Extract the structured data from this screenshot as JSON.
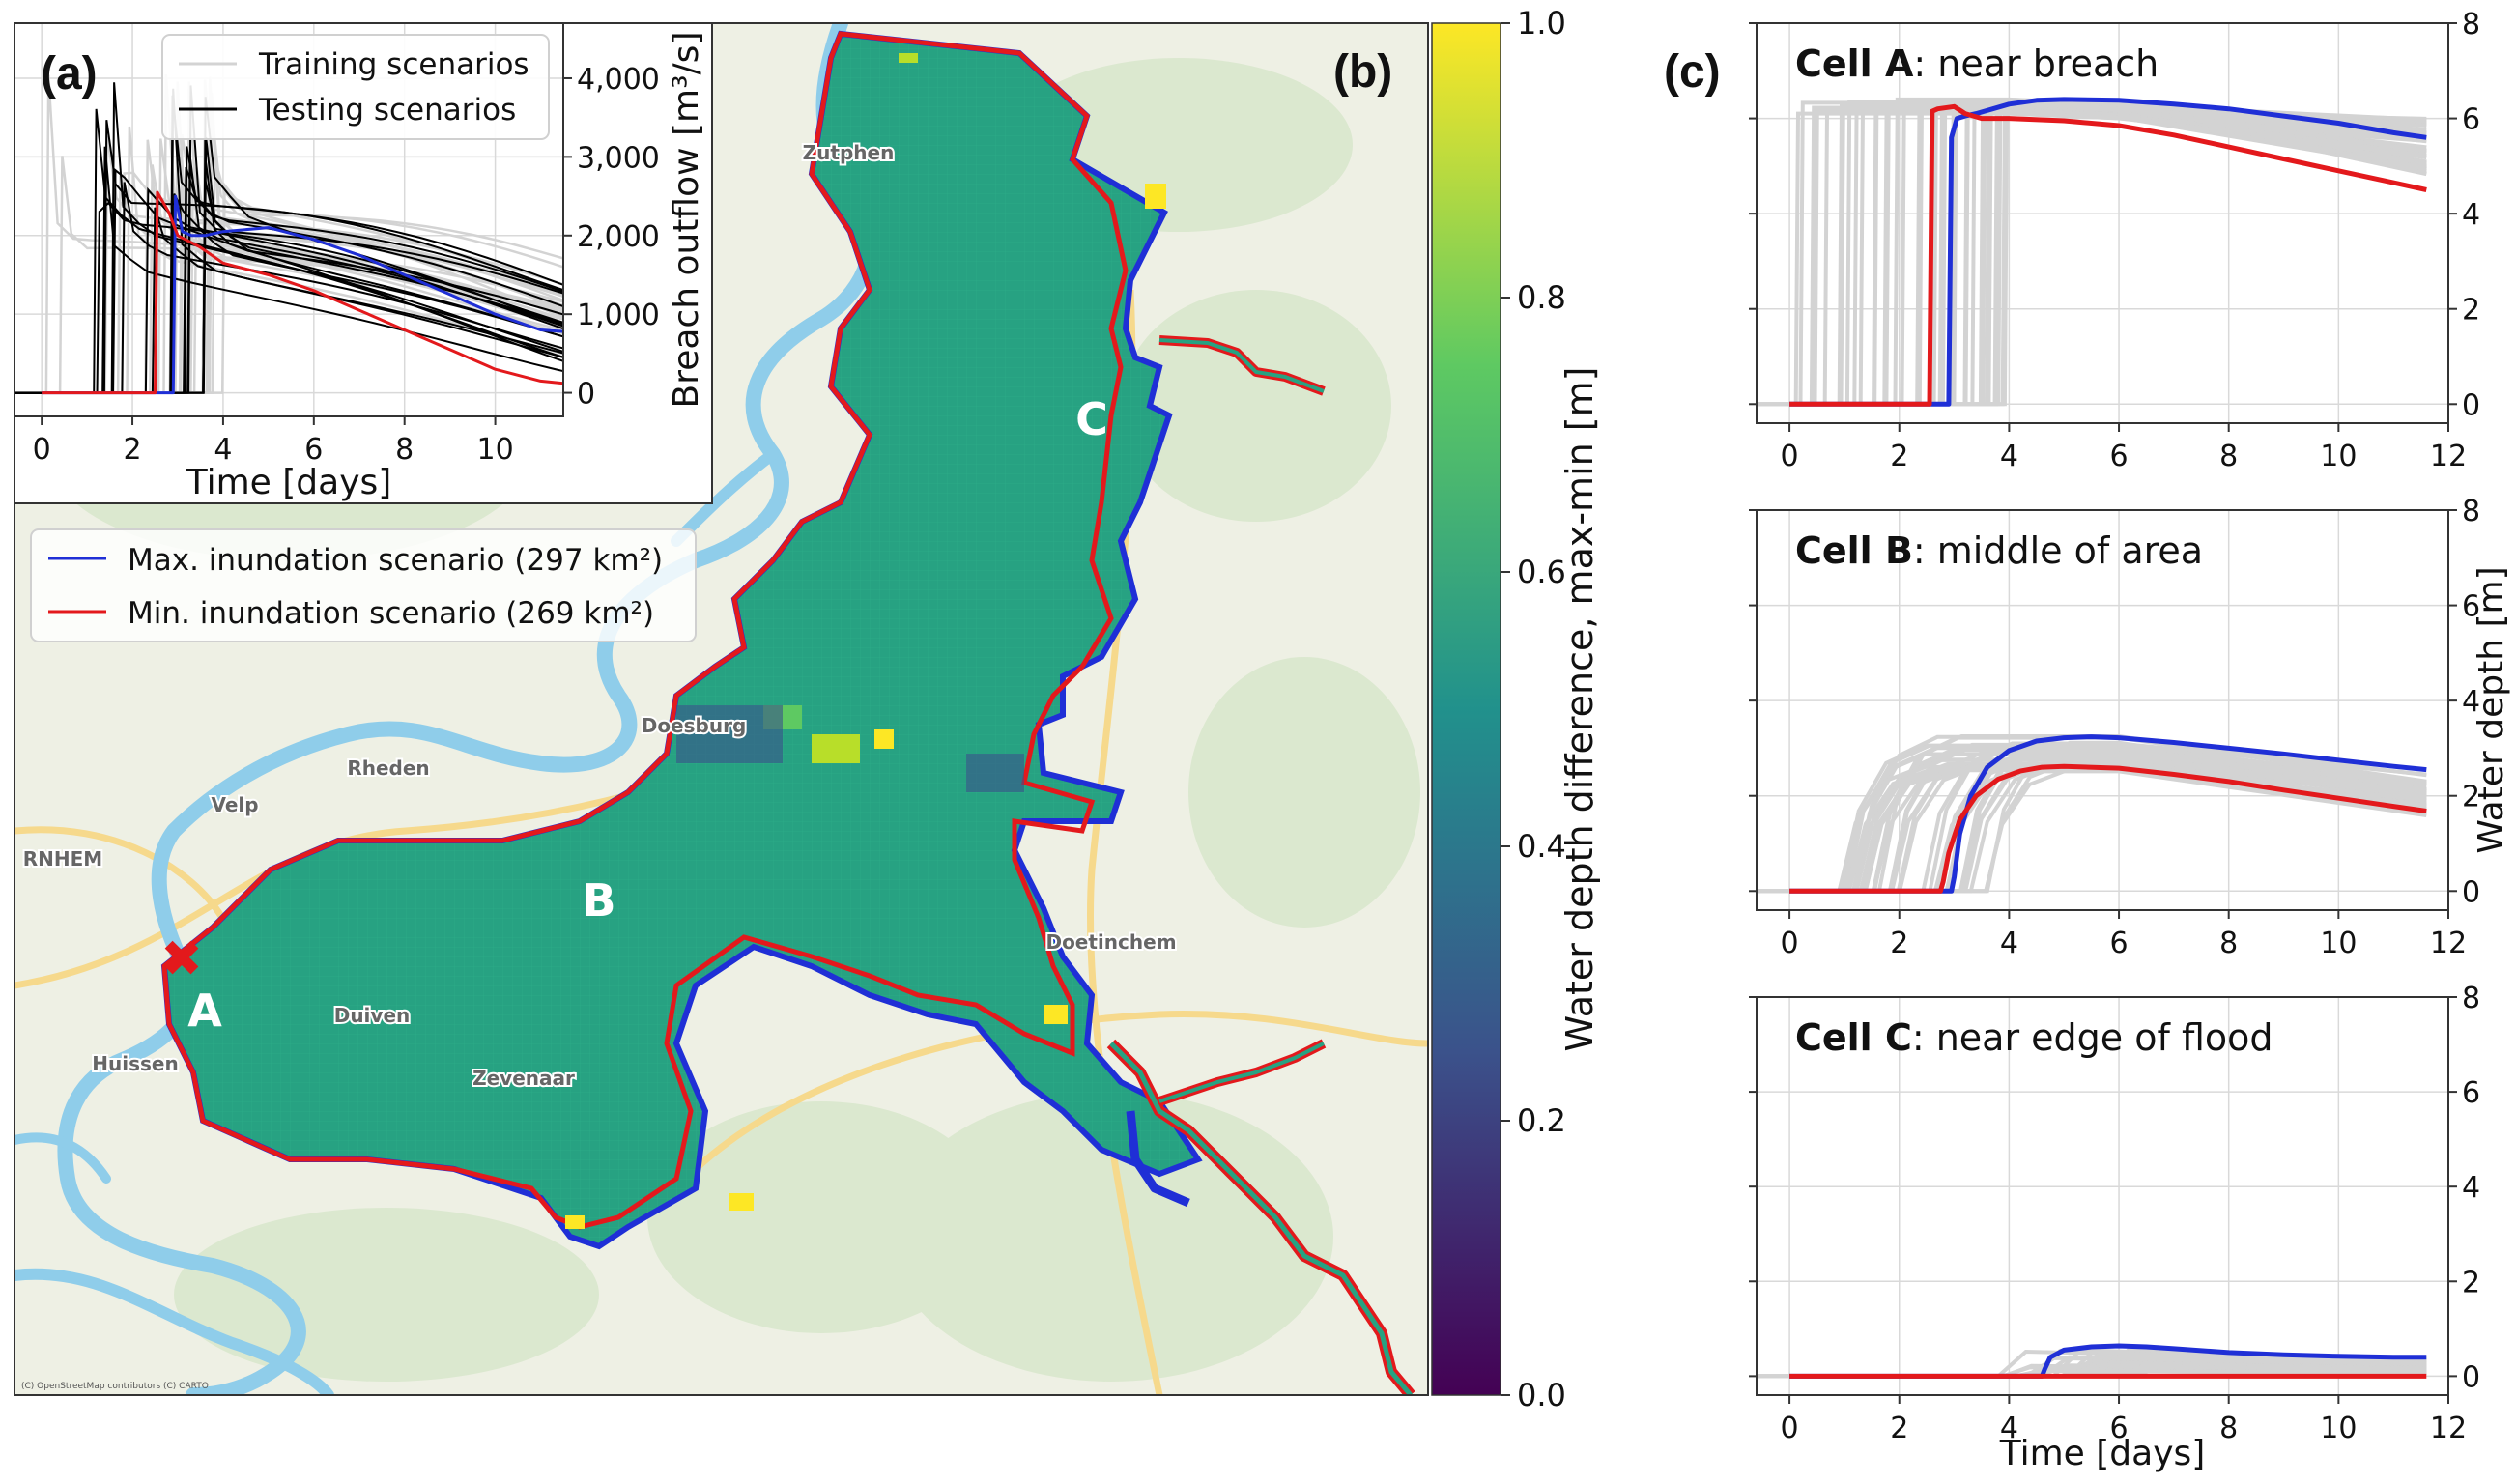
{
  "figure": {
    "panel_a_label": "(a)",
    "panel_b_label": "(b)",
    "panel_c_label": "(c)",
    "map_attribution": "(C) OpenStreetMap contributors (C) CARTO"
  },
  "map": {
    "legend": {
      "max_label": "Max. inundation scenario (297 km²)",
      "min_label": "Min. inundation scenario (269 km²)",
      "max_color": "#1f2fd6",
      "min_color": "#e3191c"
    },
    "places": [
      "Zutphen",
      "Doesburg",
      "Rheden",
      "Velp",
      "RNHEM",
      "Duiven",
      "Huissen",
      "Zevenaar",
      "Doetinchem"
    ],
    "cells": [
      "A",
      "B",
      "C"
    ],
    "breach_marker": "✖",
    "colorbar": {
      "label": "Water depth difference, max-min [m]",
      "ticks": [
        "0.0",
        "0.2",
        "0.4",
        "0.6",
        "0.8",
        "1.0"
      ],
      "colors": [
        "#440154",
        "#3b528b",
        "#21918c",
        "#5ec962",
        "#fde725"
      ]
    }
  },
  "chart_data": [
    {
      "id": "a",
      "type": "line",
      "title": "",
      "xlabel": "Time [days]",
      "ylabel": "Breach outflow [m³/s]",
      "xlim": [
        -0.6,
        11.5
      ],
      "ylim": [
        -300,
        4700
      ],
      "xticks": [
        0,
        2,
        4,
        6,
        8,
        10
      ],
      "yticks": [
        0,
        1000,
        2000,
        3000,
        4000
      ],
      "ytick_labels": [
        "0",
        "1,000",
        "2,000",
        "3,000",
        "4,000"
      ],
      "legend": [
        {
          "name": "Training scenarios",
          "color": "#d3d3d3"
        },
        {
          "name": "Testing scenarios",
          "color": "#000000"
        }
      ],
      "series": [
        {
          "name": "Max. inundation scenario",
          "color": "#1f2fd6",
          "x": [
            0,
            2.9,
            2.95,
            3.0,
            3.1,
            3.3,
            3.6,
            4,
            5,
            6,
            7,
            8,
            9,
            10,
            11,
            11.5
          ],
          "y": [
            0,
            0,
            2500,
            2350,
            2050,
            2000,
            2000,
            2050,
            2100,
            1950,
            1750,
            1500,
            1250,
            1000,
            800,
            780
          ]
        },
        {
          "name": "Min. inundation scenario",
          "color": "#e3191c",
          "x": [
            0,
            2.5,
            2.55,
            2.6,
            2.8,
            3.0,
            3.5,
            4,
            5,
            6,
            7,
            8,
            9,
            10,
            11,
            11.5
          ],
          "y": [
            0,
            0,
            2550,
            2500,
            2300,
            2000,
            1850,
            1650,
            1500,
            1300,
            1050,
            800,
            550,
            300,
            150,
            120
          ]
        }
      ]
    },
    {
      "id": "cellA",
      "type": "line",
      "title_bold": "Cell A",
      "title_rest": ": near breach",
      "xlabel": "",
      "ylabel": "",
      "xlim": [
        -0.6,
        12
      ],
      "ylim": [
        -0.4,
        8
      ],
      "xticks": [
        0,
        2,
        4,
        6,
        8,
        10,
        12
      ],
      "yticks": [
        0,
        2,
        4,
        6,
        8
      ],
      "series": [
        {
          "name": "Max. inundation scenario",
          "color": "#1f2fd6",
          "x": [
            0,
            2.9,
            2.95,
            3.05,
            3.2,
            3.4,
            4,
            4.5,
            5,
            6,
            7,
            8,
            9,
            10,
            11,
            11.6
          ],
          "y": [
            0,
            0,
            5.6,
            6.0,
            6.05,
            6.1,
            6.3,
            6.38,
            6.4,
            6.38,
            6.3,
            6.2,
            6.05,
            5.9,
            5.7,
            5.6
          ]
        },
        {
          "name": "Min. inundation scenario",
          "color": "#e3191c",
          "x": [
            0,
            2.55,
            2.6,
            2.7,
            3.0,
            3.2,
            3.5,
            4,
            5,
            6,
            7,
            8,
            9,
            10,
            11,
            11.6
          ],
          "y": [
            0,
            0,
            6.15,
            6.2,
            6.25,
            6.1,
            6.0,
            6.0,
            5.95,
            5.85,
            5.65,
            5.4,
            5.15,
            4.9,
            4.65,
            4.5
          ]
        }
      ]
    },
    {
      "id": "cellB",
      "type": "line",
      "title_bold": "Cell B",
      "title_rest": ": middle of area",
      "xlabel": "",
      "ylabel": "Water depth [m]",
      "xlim": [
        -0.6,
        12
      ],
      "ylim": [
        -0.4,
        8
      ],
      "xticks": [
        0,
        2,
        4,
        6,
        8,
        10,
        12
      ],
      "yticks": [
        0,
        2,
        4,
        6,
        8
      ],
      "series": [
        {
          "name": "Max. inundation scenario",
          "color": "#1f2fd6",
          "x": [
            0,
            2.95,
            3.0,
            3.1,
            3.3,
            3.6,
            4,
            4.5,
            5,
            5.5,
            6,
            7,
            8,
            9,
            10,
            11,
            11.6
          ],
          "y": [
            0,
            0,
            0.3,
            1.2,
            2.0,
            2.6,
            2.95,
            3.15,
            3.22,
            3.24,
            3.22,
            3.12,
            3.0,
            2.88,
            2.75,
            2.62,
            2.55
          ]
        },
        {
          "name": "Min. inundation scenario",
          "color": "#e3191c",
          "x": [
            0,
            2.75,
            2.8,
            2.9,
            3.1,
            3.4,
            3.8,
            4.2,
            4.6,
            5,
            6,
            7,
            8,
            9,
            10,
            11,
            11.6
          ],
          "y": [
            0,
            0,
            0.2,
            0.8,
            1.5,
            2.0,
            2.35,
            2.52,
            2.6,
            2.62,
            2.58,
            2.45,
            2.3,
            2.12,
            1.95,
            1.78,
            1.68
          ]
        }
      ]
    },
    {
      "id": "cellC",
      "type": "line",
      "title_bold": "Cell C",
      "title_rest": ": near edge of flood",
      "xlabel": "Time [days]",
      "ylabel": "",
      "xlim": [
        -0.6,
        12
      ],
      "ylim": [
        -0.4,
        8
      ],
      "xticks": [
        0,
        2,
        4,
        6,
        8,
        10,
        12
      ],
      "yticks": [
        0,
        2,
        4,
        6,
        8
      ],
      "series": [
        {
          "name": "Max. inundation scenario",
          "color": "#1f2fd6",
          "x": [
            0,
            4.6,
            4.65,
            4.75,
            5.0,
            5.5,
            6,
            6.5,
            7,
            8,
            9,
            10,
            11,
            11.6
          ],
          "y": [
            0,
            0,
            0.15,
            0.4,
            0.55,
            0.62,
            0.64,
            0.62,
            0.58,
            0.5,
            0.45,
            0.42,
            0.4,
            0.4
          ]
        },
        {
          "name": "Min. inundation scenario",
          "color": "#e3191c",
          "x": [
            0,
            11.6
          ],
          "y": [
            0,
            0
          ]
        }
      ]
    }
  ]
}
